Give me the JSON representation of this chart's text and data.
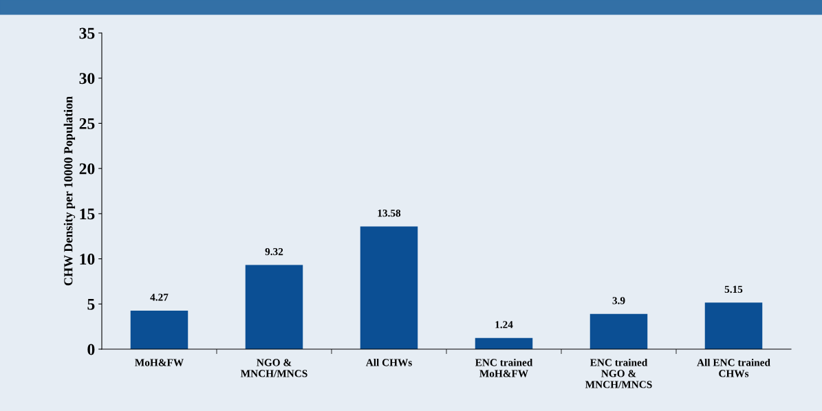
{
  "chart_data": {
    "type": "bar",
    "ylabel": "CHW Density per 10000 Population",
    "categories": [
      "MoH&FW",
      "NGO &\nMNCH/MNCS",
      "All CHWs",
      "ENC trained\nMoH&FW",
      "ENC trained\nNGO &\nMNCH/MNCS",
      "All ENC trained\nCHWs"
    ],
    "values": [
      4.27,
      9.32,
      13.58,
      1.24,
      3.9,
      5.15
    ],
    "color": "#0b4f94",
    "ylim": [
      0,
      35
    ],
    "yticks": [
      0,
      5,
      10,
      15,
      20,
      25,
      30,
      35
    ],
    "data_labels": true,
    "grid": false,
    "legend": false
  }
}
